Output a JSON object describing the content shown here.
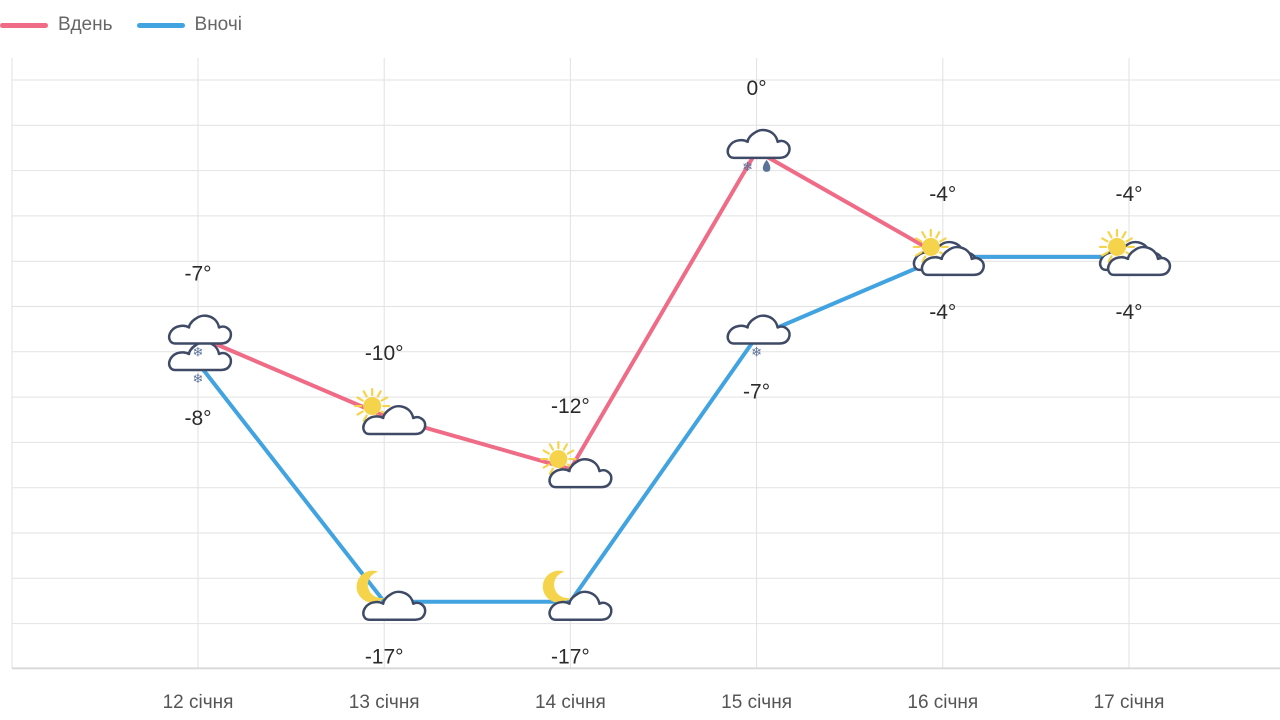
{
  "legend": {
    "day_label": "Вдень",
    "night_label": "Вночі"
  },
  "colors": {
    "day": "#ef6b86",
    "night": "#42a3e1",
    "grid": "#e2e2e2",
    "icon_stroke": "#3f4b66",
    "sun": "#f5d34a"
  },
  "chart_data": {
    "type": "line",
    "categories": [
      "12 січня",
      "13 січня",
      "14 січня",
      "15 січня",
      "16 січня",
      "17 січня"
    ],
    "series": [
      {
        "name": "Вдень",
        "values": [
          -7,
          -10,
          -12,
          0,
          -4,
          -4
        ],
        "labels": [
          "-7°",
          "-10°",
          "-12°",
          "0°",
          "-4°",
          "-4°"
        ],
        "icons": [
          "cloud-snow-icon",
          "sun-cloud-icon",
          "sun-cloud-icon",
          "cloud-snow-rain-icon",
          "sun-cloud-icon",
          "sun-cloud-icon"
        ]
      },
      {
        "name": "Вночі",
        "values": [
          -8,
          -17,
          -17,
          -7,
          -4,
          -4
        ],
        "labels": [
          "-8°",
          "-17°",
          "-17°",
          "-7°",
          "-4°",
          "-4°"
        ],
        "icons": [
          "cloud-snow-icon",
          "moon-cloud-icon",
          "moon-cloud-icon",
          "cloud-snow-icon",
          "cloud-icon",
          "cloud-icon"
        ]
      }
    ],
    "ylim": [
      -19.5,
      3.5
    ],
    "grid": true,
    "legend_position": "top-left"
  }
}
